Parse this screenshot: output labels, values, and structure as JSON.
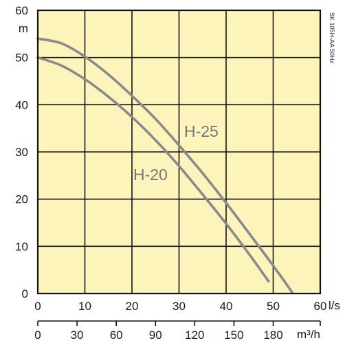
{
  "chart_data": {
    "type": "line",
    "title": "",
    "x": [
      0,
      5,
      10,
      15,
      20,
      25,
      30,
      35,
      40,
      45,
      50
    ],
    "series": [
      {
        "name": "H-25",
        "x": [
          0,
          5,
          10,
          15,
          20,
          25,
          30,
          35,
          40,
          45,
          50,
          54
        ],
        "values": [
          54,
          53.0,
          50.2,
          46.4,
          41.9,
          37.0,
          31.4,
          25.5,
          19.2,
          12.6,
          5.9,
          0.3
        ]
      },
      {
        "name": "H-20",
        "x": [
          0,
          5,
          10,
          15,
          20,
          25,
          30,
          35,
          40,
          45,
          49
        ],
        "values": [
          50,
          48.3,
          45.4,
          41.7,
          37.4,
          32.5,
          27.0,
          21.0,
          14.8,
          8.2,
          2.6
        ]
      }
    ],
    "xlim": [
      0,
      60
    ],
    "ylim": [
      0,
      60
    ],
    "x_ticks": [
      "0",
      "10",
      "20",
      "30",
      "40",
      "50",
      "60"
    ],
    "y_ticks": [
      "0",
      "10",
      "20",
      "30",
      "40",
      "50",
      "60"
    ],
    "x_unit": "l/s",
    "y_unit": "m",
    "x2_ticks": [
      "0",
      "30",
      "60",
      "90",
      "120",
      "150",
      "180"
    ],
    "x2_unit": "m³/h",
    "grid": true,
    "side_note": "SK 105H-AA 50Hz",
    "colors": {
      "plot_bg": "#fcf4bb",
      "grid": "#111111",
      "curve": "#8a8a8a"
    }
  }
}
